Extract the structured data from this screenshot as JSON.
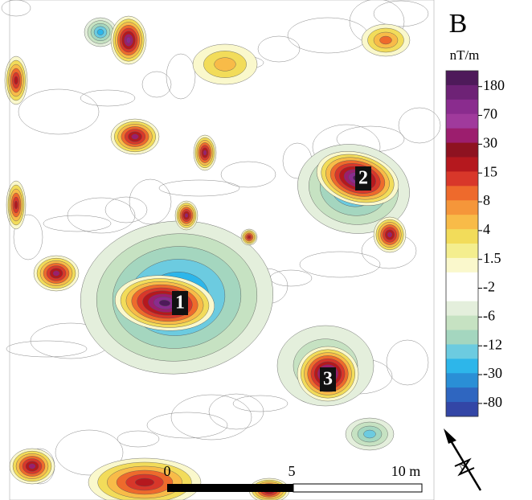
{
  "panel_label": "B",
  "unit": "nT/m",
  "legend": {
    "labels": [
      "180",
      "70",
      "30",
      "15",
      "8",
      "4",
      "1.5",
      "-2",
      "-6",
      "-12",
      "-30",
      "-80"
    ]
  },
  "anomalies": [
    "1",
    "2",
    "3"
  ],
  "scale_bar": {
    "labels": [
      "0",
      "5",
      "10 m"
    ]
  },
  "north_label": "N"
}
